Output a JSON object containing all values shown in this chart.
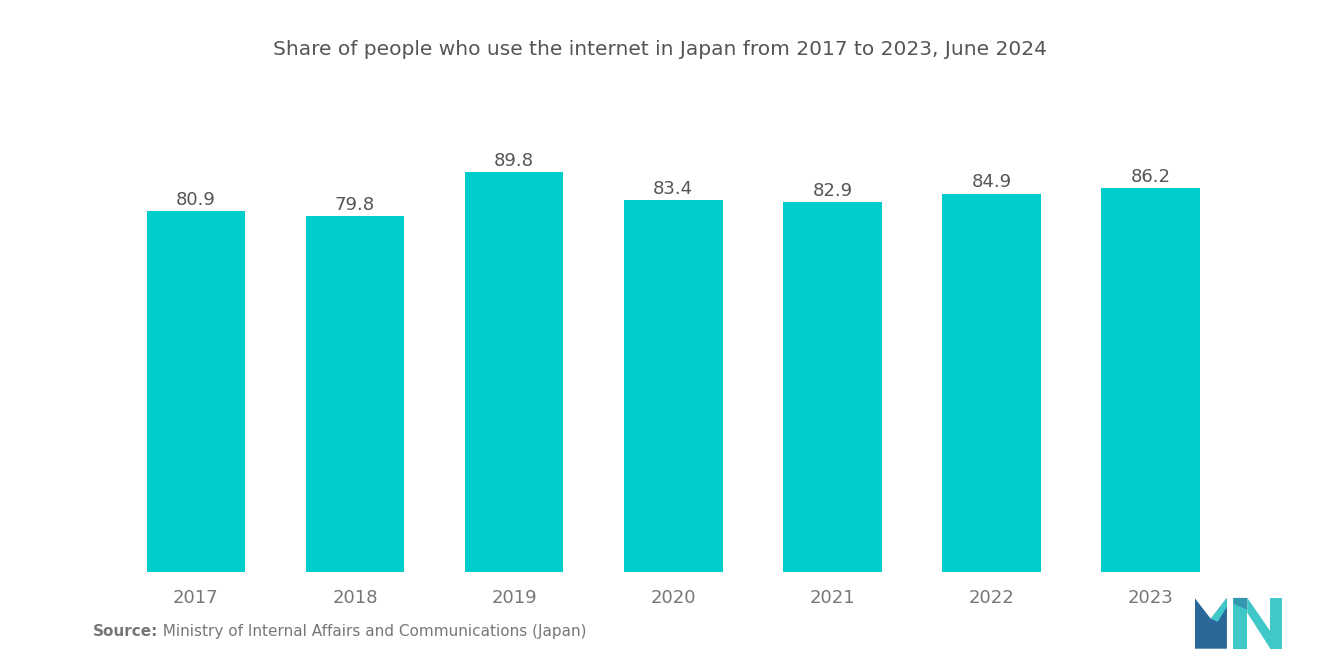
{
  "title": "Share of people who use the internet in Japan from 2017 to 2023, June 2024",
  "categories": [
    "2017",
    "2018",
    "2019",
    "2020",
    "2021",
    "2022",
    "2023"
  ],
  "values": [
    80.9,
    79.8,
    89.8,
    83.4,
    82.9,
    84.9,
    86.2
  ],
  "bar_color": "#00CCCC",
  "background_color": "#ffffff",
  "title_fontsize": 14.5,
  "label_fontsize": 13,
  "tick_fontsize": 13,
  "source_bold": "Source:",
  "source_normal": "  Ministry of Internal Affairs and Communications (Japan)",
  "source_fontsize": 11,
  "ylim": [
    0,
    97
  ],
  "bar_width": 0.62,
  "title_color": "#555555",
  "tick_color": "#777777",
  "label_color": "#555555"
}
